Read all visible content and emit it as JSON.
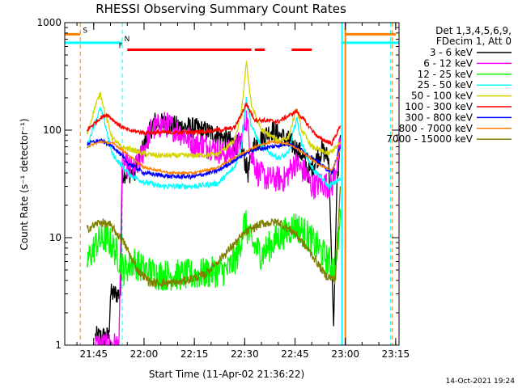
{
  "chart_data": {
    "type": "line",
    "title": "RHESSI Observing Summary Count Rates",
    "xlabel": "Start Time (11-Apr-02 21:36:22)",
    "ylabel": "Count Rate (s⁻¹ detector⁻¹)",
    "y_scale": "log",
    "ylim": [
      1,
      1000
    ],
    "xlim": [
      "21:36:22",
      "23:16:00"
    ],
    "x_ticks": [
      "21:45",
      "22:00",
      "22:15",
      "22:30",
      "22:45",
      "23:00",
      "23:15"
    ],
    "y_ticks": [
      "1",
      "10",
      "100",
      "1000"
    ],
    "legend_header": [
      "Det 1,3,4,5,6,9,",
      "FDecim 1, Att 0"
    ],
    "legend_position": "top-right, outside plot",
    "timestamp": "14-Oct-2021 19:24",
    "flags": [
      {
        "label": "S",
        "color": "#ff7f00",
        "segments": [
          [
            "21:36:22",
            "21:41:00"
          ],
          [
            "23:00:00",
            "23:15:00"
          ]
        ],
        "level": 780
      },
      {
        "label": "N",
        "color": "#00ffff",
        "segments": [
          [
            "21:36:22",
            "21:53:30"
          ],
          [
            "22:59:00",
            "23:16:00"
          ]
        ],
        "level": 650
      },
      {
        "label": "F",
        "color": "#ff0000",
        "segments": [
          [
            "21:55:00",
            "22:32:00"
          ],
          [
            "22:33:00",
            "22:36:00"
          ],
          [
            "22:44:00",
            "22:50:00"
          ]
        ],
        "level": 560
      }
    ],
    "vlines": [
      {
        "time": "21:41:00",
        "color": "#ff7f00",
        "style": "dashed"
      },
      {
        "time": "21:53:30",
        "color": "#00ffff",
        "style": "dashed"
      },
      {
        "time": "22:59:00",
        "color": "#00ffff",
        "style": "solid"
      },
      {
        "time": "23:00:00",
        "color": "#ff7f00",
        "style": "solid"
      },
      {
        "time": "23:13:30",
        "color": "#00ffff",
        "style": "dashed"
      },
      {
        "time": "23:14:00",
        "color": "#ff7f00",
        "style": "dashed"
      }
    ],
    "series": [
      {
        "name": "3 - 6 keV",
        "color": "#000000",
        "noise": 0.2,
        "points": [
          [
            "21:45:30",
            1.2
          ],
          [
            "21:49:30",
            1.2
          ],
          [
            "21:50:00",
            3.0
          ],
          [
            "21:53:00",
            3.0
          ],
          [
            "21:53:30",
            40
          ],
          [
            "21:57:00",
            40
          ],
          [
            "21:59:00",
            60
          ],
          [
            "22:03:00",
            120
          ],
          [
            "22:08:00",
            110
          ],
          [
            "22:15:00",
            105
          ],
          [
            "22:22:00",
            90
          ],
          [
            "22:27:00",
            75
          ],
          [
            "22:29:00",
            70
          ],
          [
            "22:31:00",
            40
          ],
          [
            "22:33:00",
            75
          ],
          [
            "22:38:00",
            100
          ],
          [
            "22:43:00",
            80
          ],
          [
            "22:47:00",
            60
          ],
          [
            "22:49:00",
            40
          ],
          [
            "22:53:00",
            65
          ],
          [
            "22:55:00",
            55
          ],
          [
            "22:56:30",
            1.5
          ],
          [
            "22:57:30",
            30
          ],
          [
            "22:58:30",
            90
          ]
        ]
      },
      {
        "name": "6 - 12 keV",
        "color": "#ff00ff",
        "noise": 0.25,
        "points": [
          [
            "21:45:30",
            1.0
          ],
          [
            "21:49:00",
            1.0
          ],
          [
            "21:50:00",
            1.0
          ],
          [
            "21:52:30",
            1.0
          ],
          [
            "21:53:30",
            50
          ],
          [
            "21:57:00",
            42
          ],
          [
            "21:59:00",
            55
          ],
          [
            "22:02:00",
            100
          ],
          [
            "22:06:00",
            115
          ],
          [
            "22:10:00",
            100
          ],
          [
            "22:15:00",
            75
          ],
          [
            "22:20:00",
            70
          ],
          [
            "22:24:00",
            60
          ],
          [
            "22:27:00",
            65
          ],
          [
            "22:29:00",
            80
          ],
          [
            "22:30:30",
            130
          ],
          [
            "22:32:00",
            60
          ],
          [
            "22:34:00",
            40
          ],
          [
            "22:37:00",
            35
          ],
          [
            "22:42:00",
            35
          ],
          [
            "22:45:00",
            50
          ],
          [
            "22:48:00",
            40
          ],
          [
            "22:50:00",
            30
          ],
          [
            "22:53:00",
            32
          ],
          [
            "22:56:00",
            30
          ],
          [
            "22:58:30",
            70
          ]
        ]
      },
      {
        "name": "12 - 25 keV",
        "color": "#00ff00",
        "noise": 0.3,
        "points": [
          [
            "21:43:00",
            6
          ],
          [
            "21:46:00",
            9
          ],
          [
            "21:49:00",
            10
          ],
          [
            "21:52:00",
            7
          ],
          [
            "21:54:00",
            5
          ],
          [
            "21:57:00",
            6
          ],
          [
            "22:00:00",
            5
          ],
          [
            "22:05:00",
            4.5
          ],
          [
            "22:15:00",
            4.5
          ],
          [
            "22:25:00",
            5
          ],
          [
            "22:28:00",
            7
          ],
          [
            "22:30:00",
            14
          ],
          [
            "22:32:00",
            9
          ],
          [
            "22:35:00",
            7
          ],
          [
            "22:40:00",
            10
          ],
          [
            "22:45:00",
            13
          ],
          [
            "22:48:00",
            11
          ],
          [
            "22:52:00",
            8
          ],
          [
            "22:55:00",
            6
          ],
          [
            "22:57:00",
            5
          ],
          [
            "22:58:30",
            15
          ]
        ]
      },
      {
        "name": "25 - 50 keV",
        "color": "#00ffff",
        "noise": 0.05,
        "points": [
          [
            "21:43:00",
            70
          ],
          [
            "21:45:30",
            120
          ],
          [
            "21:47:00",
            160
          ],
          [
            "21:48:30",
            110
          ],
          [
            "21:50:30",
            60
          ],
          [
            "21:53:00",
            48
          ],
          [
            "21:56:00",
            38
          ],
          [
            "22:00:00",
            33
          ],
          [
            "22:05:00",
            30
          ],
          [
            "22:15:00",
            30
          ],
          [
            "22:22:00",
            32
          ],
          [
            "22:27:00",
            45
          ],
          [
            "22:29:00",
            70
          ],
          [
            "22:30:30",
            200
          ],
          [
            "22:32:00",
            110
          ],
          [
            "22:35:00",
            70
          ],
          [
            "22:40:00",
            55
          ],
          [
            "22:43:00",
            60
          ],
          [
            "22:45:30",
            130
          ],
          [
            "22:47:00",
            75
          ],
          [
            "22:50:00",
            45
          ],
          [
            "22:55:00",
            30
          ],
          [
            "22:58:30",
            35
          ]
        ]
      },
      {
        "name": "50 - 100 keV",
        "color": "#d4d400",
        "noise": 0.05,
        "points": [
          [
            "21:43:00",
            90
          ],
          [
            "21:45:30",
            170
          ],
          [
            "21:47:00",
            220
          ],
          [
            "21:48:30",
            140
          ],
          [
            "21:50:30",
            85
          ],
          [
            "21:53:00",
            70
          ],
          [
            "21:57:00",
            65
          ],
          [
            "22:00:00",
            60
          ],
          [
            "22:05:00",
            58
          ],
          [
            "22:15:00",
            58
          ],
          [
            "22:22:00",
            60
          ],
          [
            "22:27:00",
            80
          ],
          [
            "22:29:00",
            140
          ],
          [
            "22:30:30",
            430
          ],
          [
            "22:32:00",
            170
          ],
          [
            "22:35:00",
            100
          ],
          [
            "22:40:00",
            80
          ],
          [
            "22:43:00",
            85
          ],
          [
            "22:45:30",
            160
          ],
          [
            "22:47:00",
            100
          ],
          [
            "22:50:00",
            70
          ],
          [
            "22:55:00",
            60
          ],
          [
            "22:58:30",
            75
          ]
        ]
      },
      {
        "name": "100 - 300 keV",
        "color": "#ff0000",
        "noise": 0.04,
        "points": [
          [
            "21:43:00",
            100
          ],
          [
            "21:47:00",
            130
          ],
          [
            "21:49:00",
            140
          ],
          [
            "21:52:00",
            115
          ],
          [
            "21:55:00",
            100
          ],
          [
            "22:00:00",
            95
          ],
          [
            "22:10:00",
            95
          ],
          [
            "22:20:00",
            98
          ],
          [
            "22:27:00",
            105
          ],
          [
            "22:30:30",
            175
          ],
          [
            "22:33:00",
            125
          ],
          [
            "22:40:00",
            120
          ],
          [
            "22:45:30",
            150
          ],
          [
            "22:48:00",
            120
          ],
          [
            "22:52:00",
            85
          ],
          [
            "22:56:00",
            75
          ],
          [
            "22:58:30",
            110
          ]
        ]
      },
      {
        "name": "300 - 800 keV",
        "color": "#0000ff",
        "noise": 0.04,
        "points": [
          [
            "21:43:00",
            75
          ],
          [
            "21:47:00",
            80
          ],
          [
            "21:51:00",
            70
          ],
          [
            "21:55:00",
            50
          ],
          [
            "22:00:00",
            40
          ],
          [
            "22:08:00",
            37
          ],
          [
            "22:15:00",
            37
          ],
          [
            "22:22:00",
            42
          ],
          [
            "22:28:00",
            55
          ],
          [
            "22:32:00",
            65
          ],
          [
            "22:38:00",
            70
          ],
          [
            "22:43:00",
            75
          ],
          [
            "22:47:00",
            65
          ],
          [
            "22:52:00",
            50
          ],
          [
            "22:56:00",
            40
          ],
          [
            "22:58:30",
            70
          ]
        ]
      },
      {
        "name": "800 - 7000 keV",
        "color": "#ff7f00",
        "noise": 0.02,
        "points": [
          [
            "21:43:00",
            70
          ],
          [
            "21:47:00",
            78
          ],
          [
            "21:51:00",
            75
          ],
          [
            "21:55:00",
            60
          ],
          [
            "22:00:00",
            45
          ],
          [
            "22:08:00",
            40
          ],
          [
            "22:15:00",
            40
          ],
          [
            "22:22:00",
            45
          ],
          [
            "22:28:00",
            58
          ],
          [
            "22:33:00",
            70
          ],
          [
            "22:38:00",
            78
          ],
          [
            "22:43:00",
            75
          ],
          [
            "22:48:00",
            60
          ],
          [
            "22:52:00",
            48
          ],
          [
            "22:56:00",
            42
          ],
          [
            "22:58:30",
            65
          ]
        ]
      },
      {
        "name": "7000 - 15000 keV",
        "color": "#808000",
        "noise": 0.08,
        "points": [
          [
            "21:43:00",
            12
          ],
          [
            "21:47:00",
            14
          ],
          [
            "21:50:00",
            13
          ],
          [
            "21:54:00",
            9
          ],
          [
            "21:58:00",
            5
          ],
          [
            "22:02:00",
            3.8
          ],
          [
            "22:10:00",
            3.8
          ],
          [
            "22:18:00",
            4.5
          ],
          [
            "22:24:00",
            7
          ],
          [
            "22:30:00",
            11
          ],
          [
            "22:35:00",
            13.5
          ],
          [
            "22:40:00",
            14
          ],
          [
            "22:45:00",
            11
          ],
          [
            "22:50:00",
            7
          ],
          [
            "22:54:00",
            4.5
          ],
          [
            "22:57:00",
            4
          ],
          [
            "22:58:30",
            30
          ]
        ]
      }
    ]
  }
}
